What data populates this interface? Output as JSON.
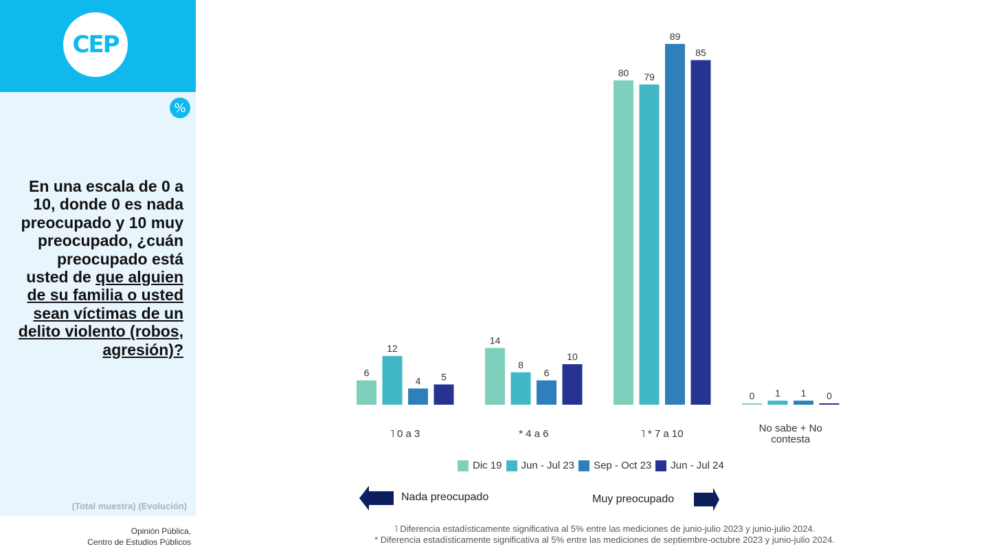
{
  "sidebar": {
    "logo_text": "CEP",
    "percent_badge": "%",
    "question_plain": "En una escala de 0 a 10, donde 0 es nada preocupado y 10 muy preocupado, ¿cuán preocupado está usted de",
    "question_underlined": "que alguien de su familia o usted sean víctimas de un delito violento (robos, agresión)?",
    "sample_note": "(Total muestra) (Evolución)",
    "source_line1": "Opinión Pública,",
    "source_line2": "Centro de Estudios Públicos"
  },
  "colors": {
    "brand": "#0fb9ee",
    "panel_bg": "#e8f5fc",
    "arrow": "#0d1f5c"
  },
  "scale": {
    "left_label": "Nada preocupado",
    "right_label": "Muy preocupado"
  },
  "footnotes": [
    "˥ Diferencia estadísticamente significativa al 5% entre las mediciones de junio-julio 2023 y junio-julio 2024.",
    "* Diferencia estadísticamente significativa al 5% entre las mediciones de septiembre-octubre 2023 y junio-julio 2024."
  ],
  "chart_data": {
    "type": "bar",
    "title": "",
    "xlabel": "",
    "ylabel": "",
    "unit": "%",
    "ylim": [
      0,
      100
    ],
    "grid": false,
    "legend_position": "bottom",
    "categories": [
      "˥ 0 a 3",
      "* 4 a 6",
      "˥ * 7 a 10",
      "No sabe + No contesta"
    ],
    "series": [
      {
        "name": "Dic 19",
        "color": "#7fcfbd",
        "values": [
          6,
          14,
          80,
          0
        ]
      },
      {
        "name": "Jun - Jul 23",
        "color": "#42b7c6",
        "values": [
          12,
          8,
          79,
          1
        ]
      },
      {
        "name": "Sep - Oct 23",
        "color": "#2e7fba",
        "values": [
          4,
          6,
          89,
          1
        ]
      },
      {
        "name": "Jun - Jul 24",
        "color": "#263392",
        "values": [
          5,
          10,
          85,
          0
        ]
      }
    ]
  }
}
